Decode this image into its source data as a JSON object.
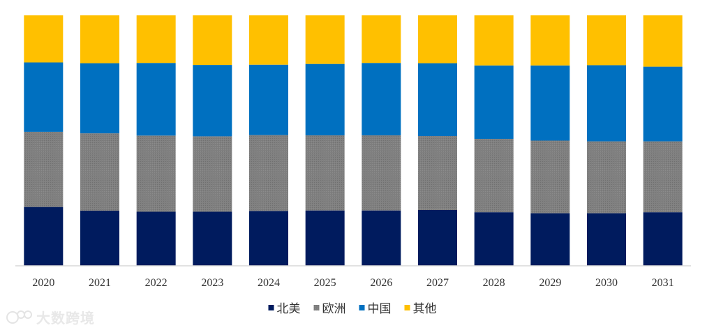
{
  "chart_data": {
    "type": "bar",
    "stacked": true,
    "categories": [
      "2020",
      "2021",
      "2022",
      "2023",
      "2024",
      "2025",
      "2026",
      "2027",
      "2028",
      "2029",
      "2030",
      "2031"
    ],
    "series": [
      {
        "name": "北美",
        "color": "#001b5e",
        "values": [
          23.5,
          22.0,
          21.6,
          21.6,
          21.9,
          22.1,
          22.1,
          22.3,
          21.4,
          21.0,
          21.0,
          21.4
        ]
      },
      {
        "name": "欧洲",
        "color": "#808080",
        "values": [
          30.0,
          30.9,
          30.4,
          30.1,
          30.3,
          30.0,
          30.0,
          29.5,
          29.3,
          29.0,
          28.7,
          28.3
        ]
      },
      {
        "name": "中国",
        "color": "#0070c0",
        "values": [
          27.7,
          28.0,
          29.0,
          28.5,
          28.1,
          28.5,
          28.9,
          29.1,
          29.3,
          30.0,
          30.4,
          29.8
        ]
      },
      {
        "name": "其他",
        "color": "#ffc000",
        "values": [
          18.8,
          19.1,
          19.0,
          19.8,
          19.7,
          19.4,
          19.0,
          19.1,
          20.0,
          20.0,
          19.9,
          20.5
        ]
      }
    ],
    "ylim": [
      0,
      100
    ],
    "grid": false,
    "legend_position": "bottom"
  },
  "watermark": {
    "text": "大数跨境"
  }
}
